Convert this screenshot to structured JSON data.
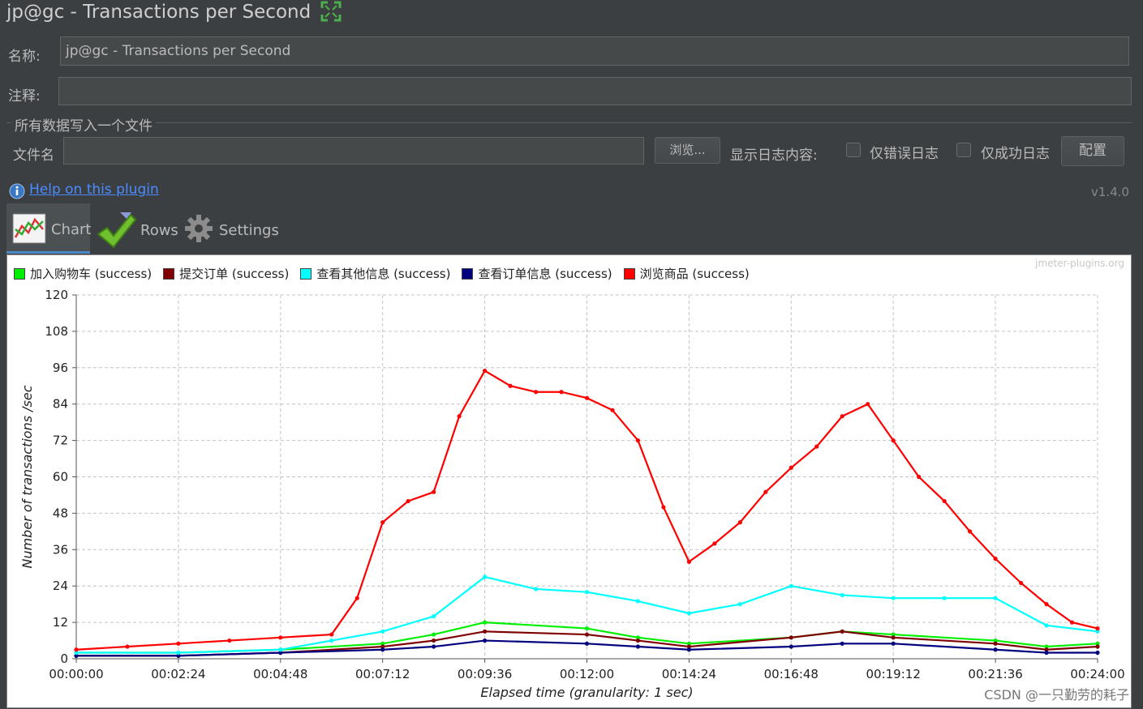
{
  "window": {
    "title": "jp@gc - Transactions per Second"
  },
  "form": {
    "name_label": "名称:",
    "name_value": "jp@gc - Transactions per Second",
    "comment_label": "注释:",
    "comment_value": "",
    "section_title": "所有数据写入一个文件",
    "filename_label": "文件名",
    "filename_value": "",
    "browse_button": "浏览...",
    "log_content_label": "显示日志内容:",
    "errors_only_label": "仅错误日志",
    "success_only_label": "仅成功日志",
    "configure_button": "配置"
  },
  "help": {
    "link_text": "Help on this plugin",
    "version": "v1.4.0"
  },
  "tabs": [
    {
      "label": "Chart",
      "icon": "chart-icon",
      "active": true
    },
    {
      "label": "Rows",
      "icon": "checkmark-icon",
      "active": false
    },
    {
      "label": "Settings",
      "icon": "gear-icon",
      "active": false
    }
  ],
  "watermark": "CSDN @一只勤劳的耗子",
  "chart_data": {
    "type": "line",
    "title": "",
    "credit": "jmeter-plugins.org",
    "xlabel": "Elapsed time (granularity: 1 sec)",
    "ylabel": "Number of transactions /sec",
    "ylim": [
      0,
      120
    ],
    "xlim_seconds": [
      0,
      1440
    ],
    "y_ticks": [
      "0",
      "12",
      "24",
      "36",
      "48",
      "60",
      "72",
      "84",
      "96",
      "108",
      "120"
    ],
    "x_ticks": [
      "00:00:00",
      "00:02:24",
      "00:04:48",
      "00:07:12",
      "00:09:36",
      "00:12:00",
      "00:14:24",
      "00:16:48",
      "00:19:12",
      "00:21:36",
      "00:24:00"
    ],
    "grid": true,
    "legend_position": "top-left",
    "series": [
      {
        "name": "加入购物车 (success)",
        "color": "#00ee00",
        "x": [
          "00:00:00",
          "00:02:24",
          "00:04:48",
          "00:07:12",
          "00:08:24",
          "00:09:36",
          "00:12:00",
          "00:13:12",
          "00:14:24",
          "00:16:48",
          "00:18:00",
          "00:19:12",
          "00:21:36",
          "00:22:48",
          "00:24:00"
        ],
        "y": [
          2,
          2,
          3,
          5,
          8,
          12,
          10,
          7,
          5,
          7,
          9,
          8,
          6,
          4,
          5
        ]
      },
      {
        "name": "提交订单 (success)",
        "color": "#7f0000",
        "x": [
          "00:00:00",
          "00:02:24",
          "00:04:48",
          "00:07:12",
          "00:08:24",
          "00:09:36",
          "00:12:00",
          "00:13:12",
          "00:14:24",
          "00:16:48",
          "00:18:00",
          "00:19:12",
          "00:21:36",
          "00:22:48",
          "00:24:00"
        ],
        "y": [
          1,
          1,
          2,
          4,
          6,
          9,
          8,
          6,
          4,
          7,
          9,
          7,
          5,
          3,
          4
        ]
      },
      {
        "name": "查看其他信息 (success)",
        "color": "#00ffff",
        "x": [
          "00:00:00",
          "00:02:24",
          "00:04:48",
          "00:06:00",
          "00:07:12",
          "00:08:24",
          "00:09:36",
          "00:10:48",
          "00:12:00",
          "00:13:12",
          "00:14:24",
          "00:15:36",
          "00:16:48",
          "00:18:00",
          "00:19:12",
          "00:20:24",
          "00:21:36",
          "00:22:48",
          "00:24:00"
        ],
        "y": [
          2,
          2,
          3,
          6,
          9,
          14,
          27,
          23,
          22,
          19,
          15,
          18,
          24,
          21,
          20,
          20,
          20,
          11,
          9
        ]
      },
      {
        "name": "查看订单信息 (success)",
        "color": "#00007f",
        "x": [
          "00:00:00",
          "00:02:24",
          "00:04:48",
          "00:07:12",
          "00:08:24",
          "00:09:36",
          "00:12:00",
          "00:13:12",
          "00:14:24",
          "00:16:48",
          "00:18:00",
          "00:19:12",
          "00:21:36",
          "00:22:48",
          "00:24:00"
        ],
        "y": [
          1,
          1,
          2,
          3,
          4,
          6,
          5,
          4,
          3,
          4,
          5,
          5,
          3,
          2,
          2
        ]
      },
      {
        "name": "浏览商品 (success)",
        "color": "#ff0000",
        "x": [
          "00:00:00",
          "00:01:12",
          "00:02:24",
          "00:03:36",
          "00:04:48",
          "00:06:00",
          "00:06:36",
          "00:07:12",
          "00:07:48",
          "00:08:24",
          "00:09:00",
          "00:09:36",
          "00:10:12",
          "00:10:48",
          "00:11:24",
          "00:12:00",
          "00:12:36",
          "00:13:12",
          "00:13:48",
          "00:14:24",
          "00:15:00",
          "00:15:36",
          "00:16:12",
          "00:16:48",
          "00:17:24",
          "00:18:00",
          "00:18:36",
          "00:19:12",
          "00:19:48",
          "00:20:24",
          "00:21:00",
          "00:21:36",
          "00:22:12",
          "00:22:48",
          "00:23:24",
          "00:24:00"
        ],
        "y": [
          3,
          4,
          5,
          6,
          7,
          8,
          20,
          45,
          52,
          55,
          80,
          95,
          90,
          88,
          88,
          86,
          82,
          72,
          50,
          32,
          38,
          45,
          55,
          63,
          70,
          80,
          84,
          72,
          60,
          52,
          42,
          33,
          25,
          18,
          12,
          10
        ]
      }
    ]
  }
}
